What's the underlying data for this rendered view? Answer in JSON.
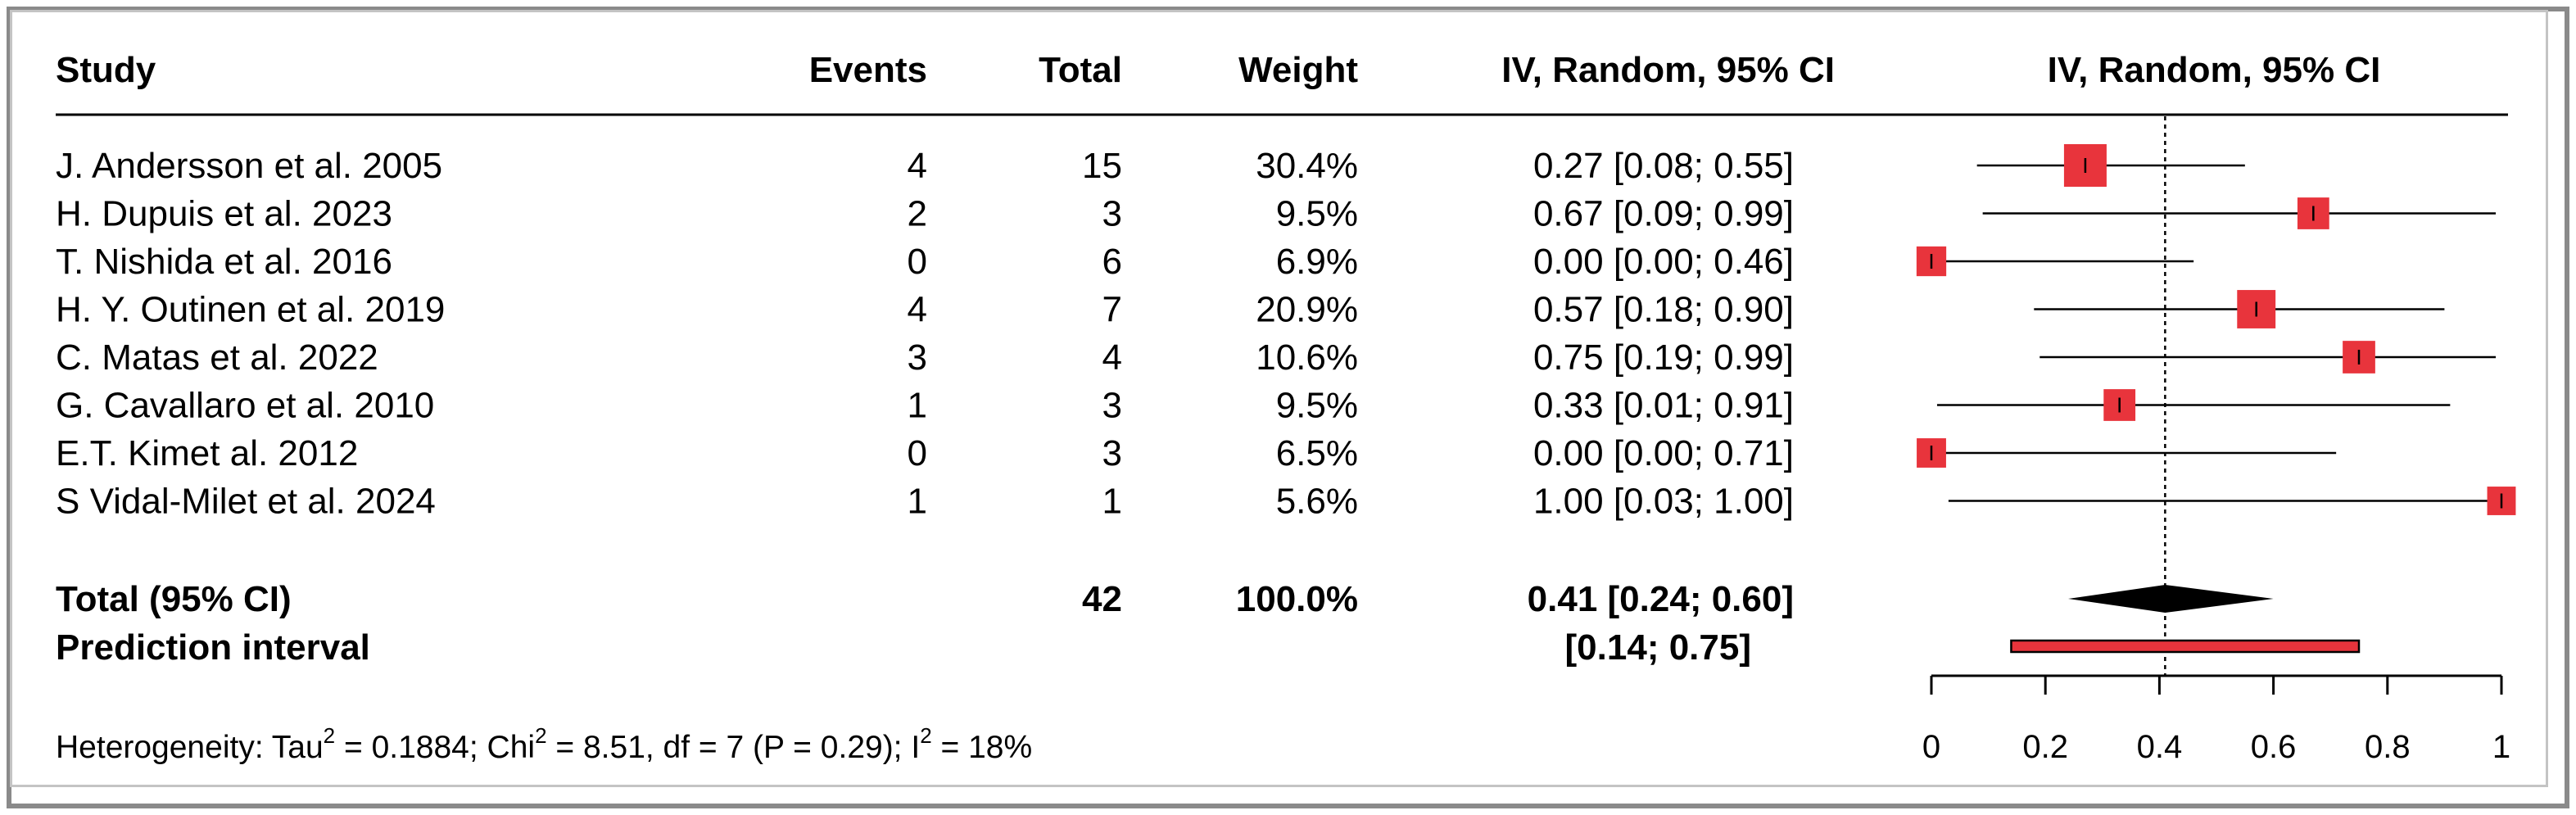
{
  "chart_data": {
    "type": "forest",
    "columns": [
      "Study",
      "Events",
      "Total",
      "Weight",
      "IV, Random, 95% CI"
    ],
    "plot_header": "IV, Random, 95% CI",
    "studies": [
      {
        "study": "J. Andersson et al. 2005",
        "events": "4",
        "total": "15",
        "weight": "30.4%",
        "ci_text": "0.27 [0.08; 0.55]",
        "est": 0.27,
        "lo": 0.08,
        "hi": 0.55,
        "w": 30.4
      },
      {
        "study": "H. Dupuis et al. 2023",
        "events": "2",
        "total": "3",
        "weight": "9.5%",
        "ci_text": "0.67 [0.09; 0.99]",
        "est": 0.67,
        "lo": 0.09,
        "hi": 0.99,
        "w": 9.5
      },
      {
        "study": "T. Nishida et al. 2016",
        "events": "0",
        "total": "6",
        "weight": "6.9%",
        "ci_text": "0.00 [0.00; 0.46]",
        "est": 0.0,
        "lo": 0.0,
        "hi": 0.46,
        "w": 6.9
      },
      {
        "study": "H. Y. Outinen et al. 2019",
        "events": "4",
        "total": "7",
        "weight": "20.9%",
        "ci_text": "0.57 [0.18; 0.90]",
        "est": 0.57,
        "lo": 0.18,
        "hi": 0.9,
        "w": 20.9
      },
      {
        "study": "C. Matas  et  al. 2022",
        "events": "3",
        "total": "4",
        "weight": "10.6%",
        "ci_text": "0.75 [0.19; 0.99]",
        "est": 0.75,
        "lo": 0.19,
        "hi": 0.99,
        "w": 10.6
      },
      {
        "study": "G. Cavallaro et  al. 2010",
        "events": "1",
        "total": "3",
        "weight": "9.5%",
        "ci_text": "0.33 [0.01; 0.91]",
        "est": 0.33,
        "lo": 0.01,
        "hi": 0.91,
        "w": 9.5
      },
      {
        "study": "E.T. Kimet al. 2012",
        "events": "0",
        "total": "3",
        "weight": "6.5%",
        "ci_text": "0.00 [0.00; 0.71]",
        "est": 0.0,
        "lo": 0.0,
        "hi": 0.71,
        "w": 6.5
      },
      {
        "study": "S Vidal-Milet et al. 2024",
        "events": "1",
        "total": "1",
        "weight": "5.6%",
        "ci_text": "1.00 [0.03; 1.00]",
        "est": 1.0,
        "lo": 0.03,
        "hi": 1.0,
        "w": 5.6
      }
    ],
    "total": {
      "label": "Total (95% CI)",
      "total": "42",
      "weight": "100.0%",
      "ci_text": "0.41 [0.24; 0.60]",
      "est": 0.41,
      "lo": 0.24,
      "hi": 0.6
    },
    "prediction": {
      "label": "Prediction interval",
      "ci_text": "[0.14; 0.75]",
      "lo": 0.14,
      "hi": 0.75
    },
    "heterogeneity": {
      "prefix": "Heterogeneity: Tau",
      "tau2": "2",
      "mid1": " = 0.1884; Chi",
      "chi2": "2",
      "mid2": " = 8.51, df = 7 (P = 0.29); I",
      "i2": "2",
      "suffix": " = 18%"
    },
    "xaxis": {
      "min": 0,
      "max": 1,
      "ticks": [
        0,
        0.2,
        0.4,
        0.6,
        0.8,
        1
      ],
      "tick_labels": [
        "0",
        "0.2",
        "0.4",
        "0.6",
        "0.8",
        "1"
      ]
    },
    "reference_line": 0.41,
    "colors": {
      "box": "#e8343c",
      "diamond": "#000000",
      "prediction_fill": "#e8343c"
    }
  }
}
